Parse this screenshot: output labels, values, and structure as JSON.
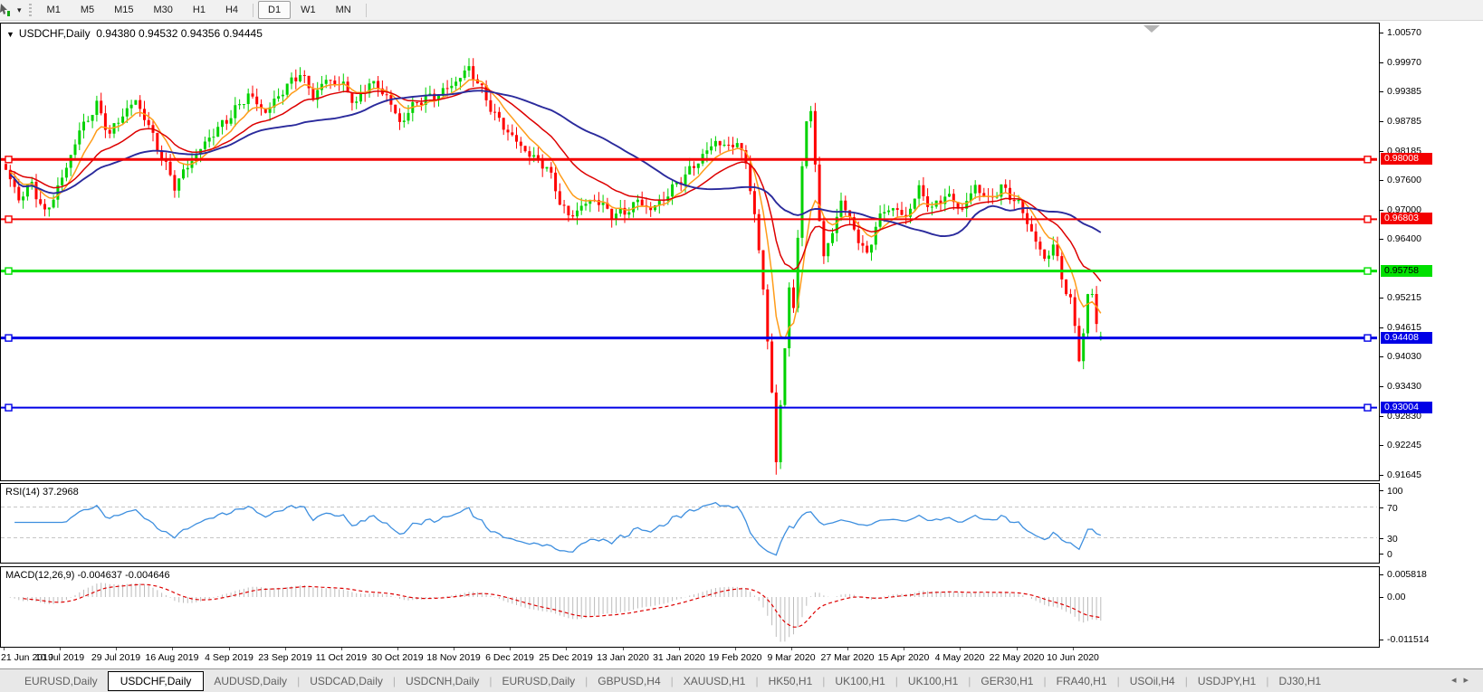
{
  "toolbar": {
    "caret": "▾",
    "timeframes": [
      "M1",
      "M5",
      "M15",
      "M30",
      "H1",
      "H4",
      "D1",
      "W1",
      "MN"
    ],
    "active_timeframe": "D1"
  },
  "chart": {
    "title": {
      "dropdown": "▼",
      "symbol": "USDCHF,Daily",
      "open": "0.94380",
      "high": "0.94532",
      "low": "0.94356",
      "close": "0.94445"
    },
    "y_axis": {
      "min": 0.91573,
      "max": 1.00751,
      "ticks": [
        "1.00570",
        "0.99970",
        "0.99385",
        "0.98785",
        "0.98185",
        "0.97600",
        "0.97000",
        "0.96400",
        "0.95215",
        "0.94615",
        "0.94030",
        "0.93430",
        "0.92830",
        "0.92245",
        "0.91645"
      ]
    },
    "h_lines": [
      {
        "value": 0.98008,
        "label": "0.98008",
        "color": "#f40000",
        "text_color": "#ffffff",
        "lw": 3
      },
      {
        "value": 0.96803,
        "label": "0.96803",
        "color": "#f40000",
        "text_color": "#ffffff",
        "lw": 2
      },
      {
        "value": 0.95758,
        "label": "0.95758",
        "color": "#00e000",
        "text_color": "#000000",
        "lw": 3
      },
      {
        "value": 0.94408,
        "label": "0.94408",
        "color": "#0000e6",
        "text_color": "#ffffff",
        "lw": 3
      },
      {
        "value": 0.93004,
        "label": "0.93004",
        "color": "#0000e6",
        "text_color": "#ffffff",
        "lw": 2
      }
    ],
    "shift_marker_color": "#b4b4b4",
    "candles": {
      "up_color": "#00d200",
      "down_color": "#ff0000",
      "count": 254,
      "last": {
        "o": 0.9438,
        "h": 0.94532,
        "l": 0.94356,
        "c": 0.94445
      },
      "crash": {
        "index": 178,
        "low": 0.9165
      },
      "anchors": [
        [
          0,
          0.978
        ],
        [
          3,
          0.9722
        ],
        [
          6,
          0.9752
        ],
        [
          9,
          0.969
        ],
        [
          13,
          0.9762
        ],
        [
          17,
          0.9858
        ],
        [
          21,
          0.991
        ],
        [
          24,
          0.9852
        ],
        [
          27,
          0.9892
        ],
        [
          30,
          0.992
        ],
        [
          33,
          0.9868
        ],
        [
          36,
          0.9805
        ],
        [
          39,
          0.9748
        ],
        [
          43,
          0.98
        ],
        [
          47,
          0.9845
        ],
        [
          52,
          0.989
        ],
        [
          56,
          0.9932
        ],
        [
          60,
          0.9896
        ],
        [
          64,
          0.994
        ],
        [
          68,
          0.9976
        ],
        [
          71,
          0.9928
        ],
        [
          74,
          0.9962
        ],
        [
          78,
          0.995
        ],
        [
          81,
          0.9912
        ],
        [
          84,
          0.9958
        ],
        [
          88,
          0.993
        ],
        [
          91,
          0.9874
        ],
        [
          95,
          0.9918
        ],
        [
          100,
          0.9932
        ],
        [
          104,
          0.9958
        ],
        [
          107,
          0.9986
        ],
        [
          110,
          0.994
        ],
        [
          113,
          0.989
        ],
        [
          117,
          0.9846
        ],
        [
          121,
          0.981
        ],
        [
          125,
          0.9786
        ],
        [
          128,
          0.9718
        ],
        [
          130,
          0.9684
        ],
        [
          133,
          0.9706
        ],
        [
          136,
          0.9722
        ],
        [
          140,
          0.969
        ],
        [
          143,
          0.9694
        ],
        [
          146,
          0.9717
        ],
        [
          149,
          0.97
        ],
        [
          152,
          0.9722
        ],
        [
          155,
          0.9752
        ],
        [
          158,
          0.9778
        ],
        [
          161,
          0.9808
        ],
        [
          164,
          0.9838
        ],
        [
          167,
          0.9824
        ],
        [
          169,
          0.984
        ],
        [
          171,
          0.9792
        ],
        [
          173,
          0.969
        ],
        [
          175,
          0.954
        ],
        [
          177,
          0.933
        ],
        [
          178,
          0.919
        ],
        [
          179,
          0.9305
        ],
        [
          180,
          0.942
        ],
        [
          181,
          0.9545
        ],
        [
          182,
          0.95
        ],
        [
          183,
          0.964
        ],
        [
          184,
          0.979
        ],
        [
          185,
          0.988
        ],
        [
          186,
          0.9895
        ],
        [
          187,
          0.979
        ],
        [
          188,
          0.968
        ],
        [
          189,
          0.9605
        ],
        [
          191,
          0.9655
        ],
        [
          193,
          0.9718
        ],
        [
          195,
          0.968
        ],
        [
          197,
          0.964
        ],
        [
          199,
          0.9605
        ],
        [
          201,
          0.967
        ],
        [
          204,
          0.9706
        ],
        [
          208,
          0.9685
        ],
        [
          211,
          0.9742
        ],
        [
          214,
          0.97
        ],
        [
          217,
          0.973
        ],
        [
          221,
          0.97
        ],
        [
          224,
          0.9748
        ],
        [
          227,
          0.9718
        ],
        [
          230,
          0.9744
        ],
        [
          234,
          0.9712
        ],
        [
          237,
          0.9655
        ],
        [
          240,
          0.9598
        ],
        [
          242,
          0.963
        ],
        [
          244,
          0.9562
        ],
        [
          246,
          0.9516
        ],
        [
          248,
          0.9402
        ],
        [
          249,
          0.9452
        ],
        [
          250,
          0.9524
        ],
        [
          251,
          0.953
        ],
        [
          252,
          0.947
        ],
        [
          253,
          0.94445
        ]
      ]
    },
    "ma_lines": [
      {
        "name": "ma-fast-orange",
        "type": "ema",
        "period": 8,
        "color": "#ff9c19",
        "width": 1.5
      },
      {
        "name": "ma-mid-red",
        "type": "ema",
        "period": 21,
        "color": "#dd0000",
        "width": 1.5
      },
      {
        "name": "ma-slow-blue",
        "type": "sma",
        "period": 45,
        "color": "#2a2a9c",
        "width": 1.9
      }
    ]
  },
  "rsi": {
    "label": "RSI(14)",
    "value": "37.2968",
    "period": 14,
    "color": "#3e8fdf",
    "level_color": "#c6c6c6",
    "levels": [
      70,
      30
    ],
    "ticks": [
      {
        "label": "100",
        "v": 100
      },
      {
        "label": "70",
        "v": 70
      },
      {
        "label": "30",
        "v": 30
      },
      {
        "label": "0",
        "v": 0
      }
    ]
  },
  "macd": {
    "label": "MACD(12,26,9)",
    "values": "-0.004637 -0.004646",
    "fast": 12,
    "slow": 26,
    "smooth": 9,
    "hist_color": "#bcbcbc",
    "signal_color": "#dd0000",
    "ticks": [
      {
        "label": "0.005818",
        "v": 0.005818
      },
      {
        "label": "0.00",
        "v": 0
      },
      {
        "label": "-0.011514",
        "v": -0.011514
      }
    ]
  },
  "x_axis": {
    "dates": [
      "21 Jun 2019",
      "10 Jul 2019",
      "29 Jul 2019",
      "16 Aug 2019",
      "4 Sep 2019",
      "23 Sep 2019",
      "11 Oct 2019",
      "30 Oct 2019",
      "18 Nov 2019",
      "6 Dec 2019",
      "25 Dec 2019",
      "13 Jan 2020",
      "31 Jan 2020",
      "19 Feb 2020",
      "9 Mar 2020",
      "27 Mar 2020",
      "15 Apr 2020",
      "4 May 2020",
      "22 May 2020",
      "10 Jun 2020"
    ]
  },
  "tabs": {
    "items": [
      "EURUSD,Daily",
      "USDCHF,Daily",
      "AUDUSD,Daily",
      "USDCAD,Daily",
      "USDCNH,Daily",
      "EURUSD,Daily",
      "GBPUSD,H4",
      "XAUUSD,H1",
      "HK50,H1",
      "UK100,H1",
      "UK100,H1",
      "GER30,H1",
      "FRA40,H1",
      "USOil,H4",
      "USDJPY,H1",
      "DJ30,H1"
    ],
    "active_index": 1,
    "nav": [
      "◂",
      "▸"
    ]
  }
}
